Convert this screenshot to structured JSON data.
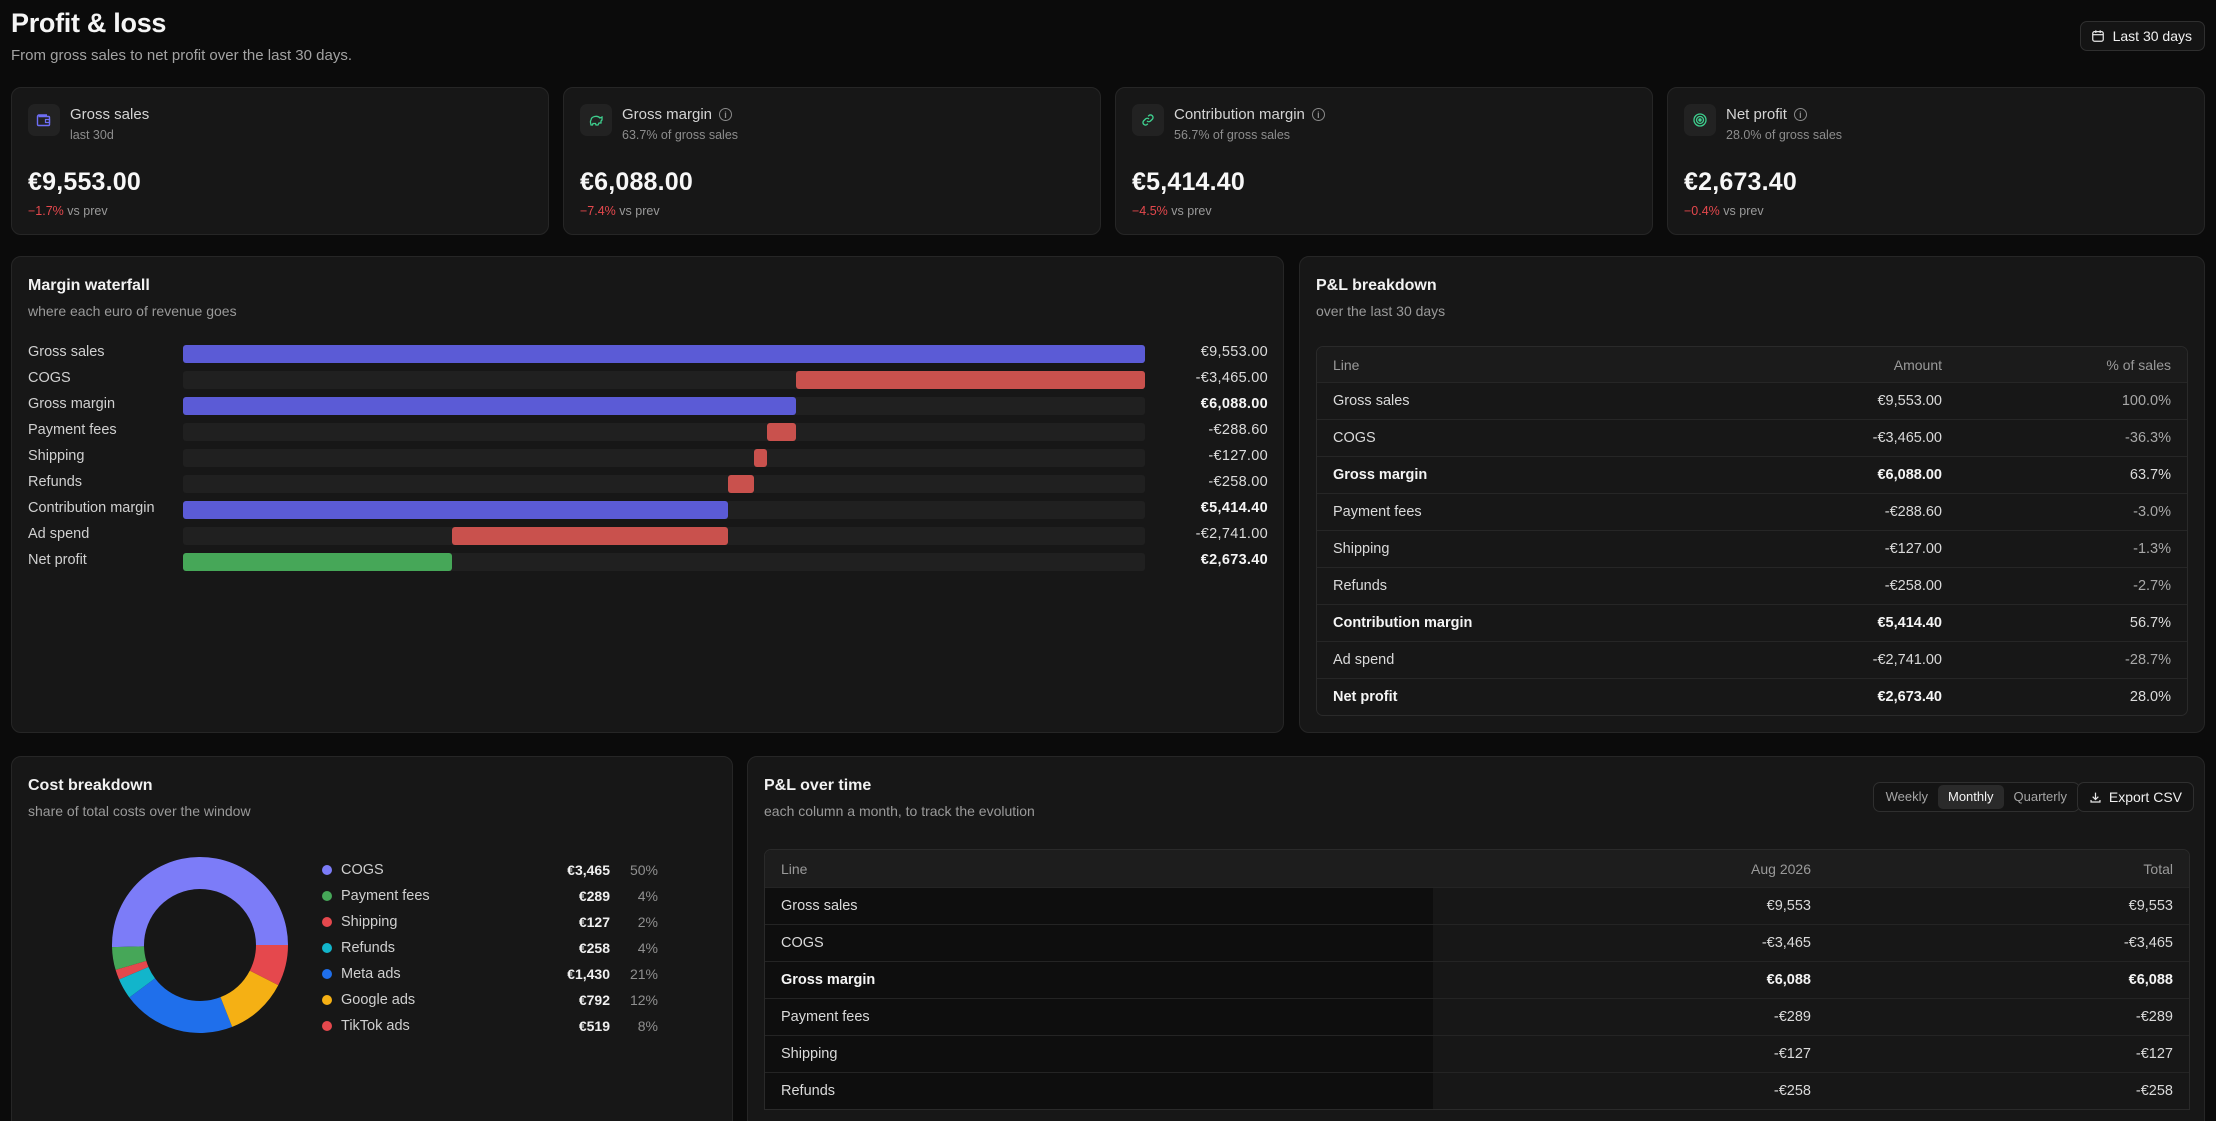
{
  "header": {
    "title": "Profit & loss",
    "subtitle": "From gross sales to net profit over the last 30 days.",
    "range_label": "Last 30 days"
  },
  "kpis": [
    {
      "label": "Gross sales",
      "sub": "last 30d",
      "value": "€9,553.00",
      "delta": "−1.7%",
      "delta_suffix": "vs prev",
      "icon": "wallet-icon",
      "color": "#6e6ef5",
      "info": false
    },
    {
      "label": "Gross margin",
      "sub": "63.7% of gross sales",
      "value": "€6,088.00",
      "delta": "−7.4%",
      "delta_suffix": "vs prev",
      "icon": "piggy-bank-icon",
      "color": "#3ecf8e",
      "info": true
    },
    {
      "label": "Contribution margin",
      "sub": "56.7% of gross sales",
      "value": "€5,414.40",
      "delta": "−4.5%",
      "delta_suffix": "vs prev",
      "icon": "link-icon",
      "color": "#3ecf8e",
      "info": true
    },
    {
      "label": "Net profit",
      "sub": "28.0% of gross sales",
      "value": "€2,673.40",
      "delta": "−0.4%",
      "delta_suffix": "vs prev",
      "icon": "target-icon",
      "color": "#3ecf8e",
      "info": true
    }
  ],
  "waterfall": {
    "title": "Margin waterfall",
    "subtitle": "where each euro of revenue goes",
    "max": 9553.0,
    "rows": [
      {
        "label": "Gross sales",
        "amount": "€9,553.00",
        "start": 0,
        "end": 9553.0,
        "kind": "total",
        "bold": false
      },
      {
        "label": "COGS",
        "amount": "-€3,465.00",
        "start": 6088.0,
        "end": 9553.0,
        "kind": "cost",
        "bold": false
      },
      {
        "label": "Gross margin",
        "amount": "€6,088.00",
        "start": 0,
        "end": 6088.0,
        "kind": "total",
        "bold": true
      },
      {
        "label": "Payment fees",
        "amount": "-€288.60",
        "start": 5799.4,
        "end": 6088.0,
        "kind": "cost",
        "bold": false
      },
      {
        "label": "Shipping",
        "amount": "-€127.00",
        "start": 5672.4,
        "end": 5799.4,
        "kind": "cost",
        "bold": false
      },
      {
        "label": "Refunds",
        "amount": "-€258.00",
        "start": 5414.4,
        "end": 5672.4,
        "kind": "cost",
        "bold": false
      },
      {
        "label": "Contribution margin",
        "amount": "€5,414.40",
        "start": 0,
        "end": 5414.4,
        "kind": "total",
        "bold": true
      },
      {
        "label": "Ad spend",
        "amount": "-€2,741.00",
        "start": 2673.4,
        "end": 5414.4,
        "kind": "cost",
        "bold": false
      },
      {
        "label": "Net profit",
        "amount": "€2,673.40",
        "start": 0,
        "end": 2673.4,
        "kind": "profit",
        "bold": true
      }
    ],
    "colors": {
      "total": "#5b5bd6",
      "cost": "#c9514d",
      "profit": "#46a758"
    }
  },
  "breakdown": {
    "title": "P&L breakdown",
    "subtitle": "over the last 30 days",
    "columns": [
      "Line",
      "Amount",
      "% of sales"
    ],
    "rows": [
      {
        "line": "Gross sales",
        "amount": "€9,553.00",
        "pct": "100.0%",
        "bold": false
      },
      {
        "line": "COGS",
        "amount": "-€3,465.00",
        "pct": "-36.3%",
        "bold": false
      },
      {
        "line": "Gross margin",
        "amount": "€6,088.00",
        "pct": "63.7%",
        "bold": true
      },
      {
        "line": "Payment fees",
        "amount": "-€288.60",
        "pct": "-3.0%",
        "bold": false
      },
      {
        "line": "Shipping",
        "amount": "-€127.00",
        "pct": "-1.3%",
        "bold": false
      },
      {
        "line": "Refunds",
        "amount": "-€258.00",
        "pct": "-2.7%",
        "bold": false
      },
      {
        "line": "Contribution margin",
        "amount": "€5,414.40",
        "pct": "56.7%",
        "bold": true
      },
      {
        "line": "Ad spend",
        "amount": "-€2,741.00",
        "pct": "-28.7%",
        "bold": false
      },
      {
        "line": "Net profit",
        "amount": "€2,673.40",
        "pct": "28.0%",
        "bold": true
      }
    ]
  },
  "costs": {
    "title": "Cost breakdown",
    "subtitle": "share of total costs over the window",
    "items": [
      {
        "name": "COGS",
        "value": "€3,465",
        "pct": "50%",
        "share": 50.4,
        "color": "#7c7cf8"
      },
      {
        "name": "Payment fees",
        "value": "€289",
        "pct": "4%",
        "share": 4.2,
        "color": "#46a758"
      },
      {
        "name": "Shipping",
        "value": "€127",
        "pct": "2%",
        "share": 1.85,
        "color": "#e5484d"
      },
      {
        "name": "Refunds",
        "value": "€258",
        "pct": "4%",
        "share": 3.75,
        "color": "#12b5cb"
      },
      {
        "name": "Meta ads",
        "value": "€1,430",
        "pct": "21%",
        "share": 20.8,
        "color": "#1f6feb"
      },
      {
        "name": "Google ads",
        "value": "€792",
        "pct": "12%",
        "share": 11.5,
        "color": "#f5b014"
      },
      {
        "name": "TikTok ads",
        "value": "€519",
        "pct": "8%",
        "share": 7.55,
        "color": "#e5484d"
      }
    ]
  },
  "overtime": {
    "title": "P&L over time",
    "subtitle": "each column a month, to track the evolution",
    "tabs": [
      {
        "label": "Weekly",
        "active": false
      },
      {
        "label": "Monthly",
        "active": true
      },
      {
        "label": "Quarterly",
        "active": false
      }
    ],
    "export_label": "Export CSV",
    "columns": [
      "Line",
      "Aug 2026",
      "Total"
    ],
    "rows": [
      {
        "line": "Gross sales",
        "month": "€9,553",
        "total": "€9,553",
        "bold": false
      },
      {
        "line": "COGS",
        "month": "-€3,465",
        "total": "-€3,465",
        "bold": false
      },
      {
        "line": "Gross margin",
        "month": "€6,088",
        "total": "€6,088",
        "bold": true
      },
      {
        "line": "Payment fees",
        "month": "-€289",
        "total": "-€289",
        "bold": false
      },
      {
        "line": "Shipping",
        "month": "-€127",
        "total": "-€127",
        "bold": false
      },
      {
        "line": "Refunds",
        "month": "-€258",
        "total": "-€258",
        "bold": false
      }
    ]
  }
}
